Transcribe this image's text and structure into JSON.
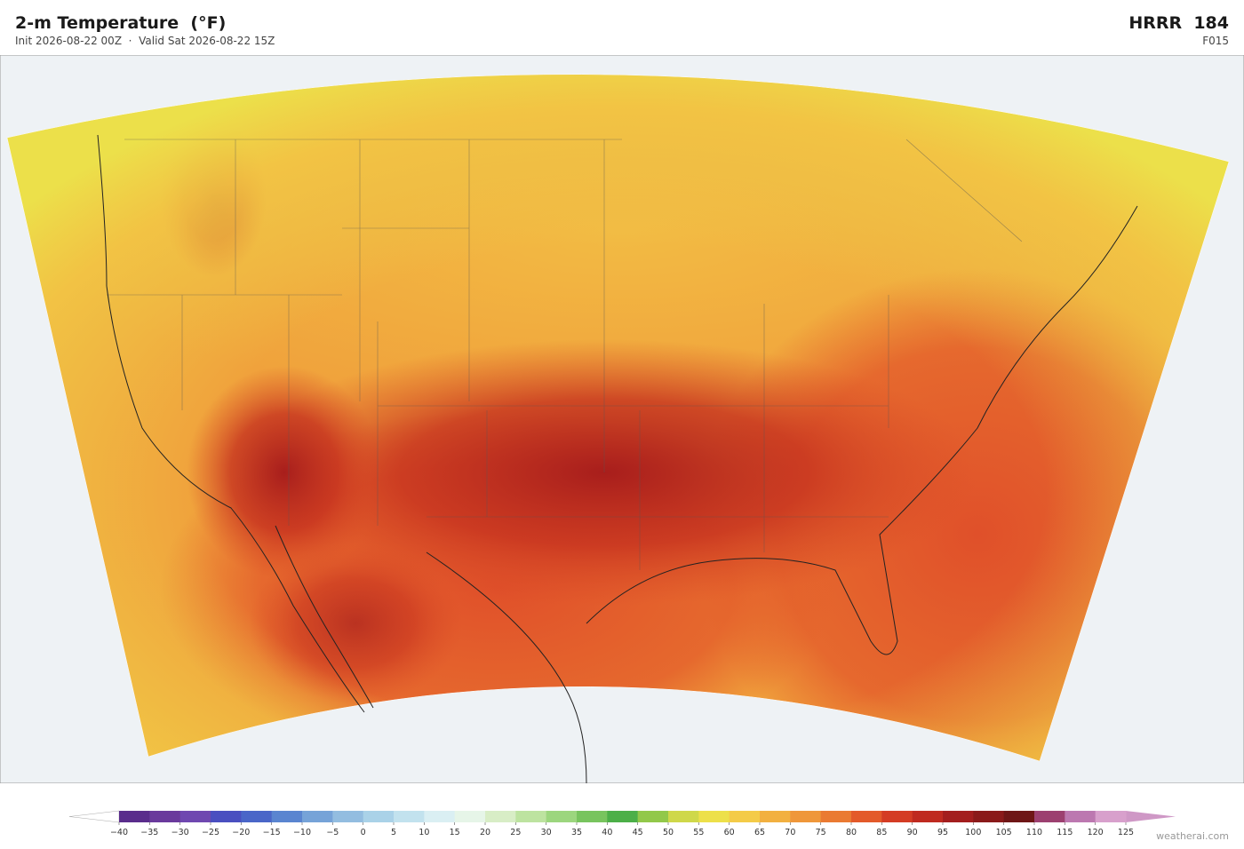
{
  "header": {
    "title": "2-m Temperature  (°F)",
    "subtitle": "Init 2026-08-22 00Z  ·  Valid Sat 2026-08-22 15Z",
    "model": "HRRR  184",
    "forecast_hour": "F015"
  },
  "colorbar": {
    "ticks": [
      {
        "value": -40,
        "label": "−40"
      },
      {
        "value": -35,
        "label": "−35"
      },
      {
        "value": -30,
        "label": "−30"
      },
      {
        "value": -25,
        "label": "−25"
      },
      {
        "value": -20,
        "label": "−20"
      },
      {
        "value": -15,
        "label": "−15"
      },
      {
        "value": -10,
        "label": "−10"
      },
      {
        "value": -5,
        "label": "−5"
      },
      0,
      5,
      10,
      15,
      20,
      25,
      30,
      35,
      40,
      45,
      50,
      55,
      60,
      65,
      70,
      75,
      80,
      85,
      90,
      95,
      100,
      105,
      110,
      115,
      120,
      125
    ],
    "colors": [
      "#5a2d8c",
      "#6a3a9c",
      "#6f48b0",
      "#4a4fc0",
      "#4a66c8",
      "#5a85d0",
      "#76a3d8",
      "#93bde0",
      "#aad2e8",
      "#c2e2ee",
      "#daeff3",
      "#e6f5e8",
      "#d8edc6",
      "#bde3a0",
      "#9cd67e",
      "#78c45e",
      "#4caf48",
      "#92c84a",
      "#cfd84a",
      "#ede04a",
      "#f4cb48",
      "#f2b040",
      "#ef973a",
      "#ea7a32",
      "#e35a2a",
      "#d43c24",
      "#bf2a20",
      "#a31e1e",
      "#8a1a1a",
      "#6e1616",
      "#9c4070",
      "#bc78b0",
      "#d8a0cc"
    ],
    "under_color": "#ffffff",
    "over_color": "#cf98c6"
  },
  "footer": {
    "credit": "weatherai.com"
  }
}
